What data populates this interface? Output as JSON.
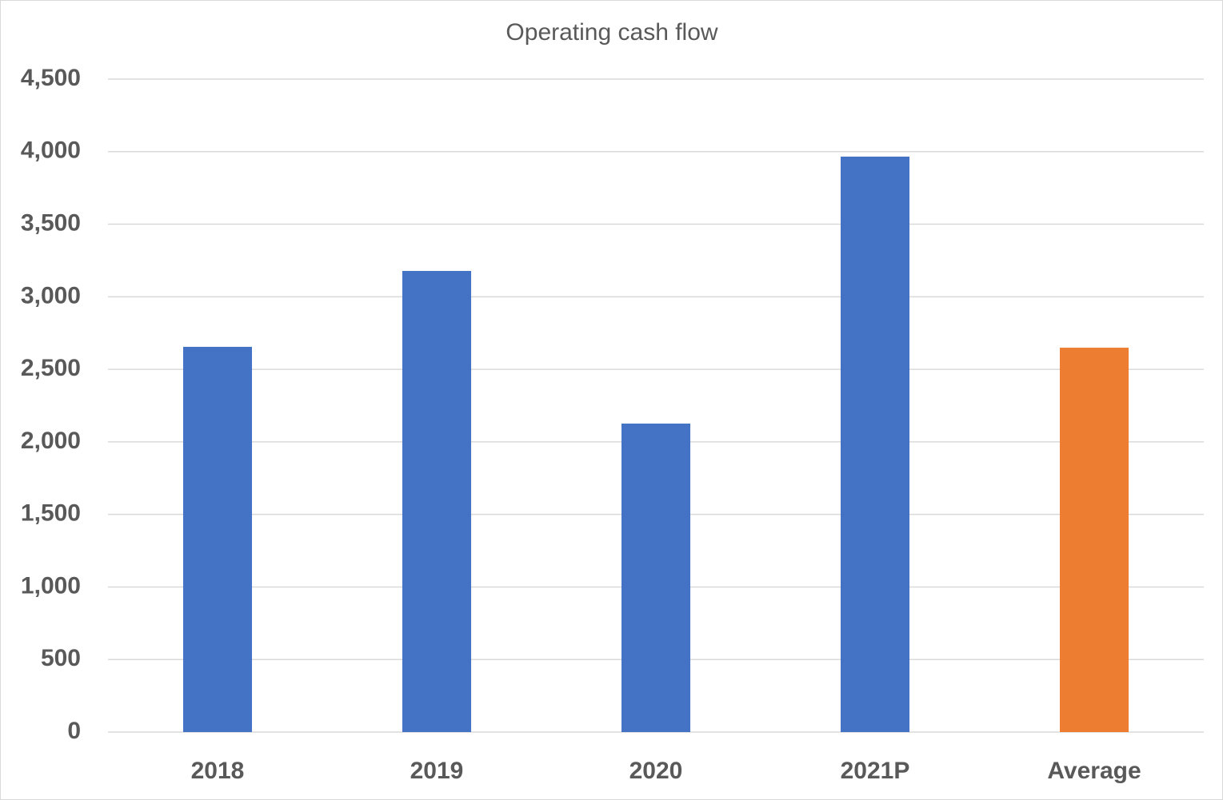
{
  "chart_data": {
    "type": "bar",
    "title": "Operating cash flow",
    "categories": [
      "2018",
      "2019",
      "2020",
      "2021P",
      "Average"
    ],
    "values": [
      2655,
      3178,
      2126,
      3966,
      2649
    ],
    "colors": [
      "#4472c4",
      "#4472c4",
      "#4472c4",
      "#4472c4",
      "#ed7d31"
    ],
    "ylim": [
      0,
      4500
    ],
    "yticks": [
      0,
      500,
      {
        "value": 1000,
        "label": "1,000"
      },
      {
        "value": 1500,
        "label": "1,500"
      },
      {
        "value": 2000,
        "label": "2,000"
      },
      {
        "value": 2500,
        "label": "2,500"
      },
      {
        "value": 3000,
        "label": "3,000"
      },
      {
        "value": 3500,
        "label": "3,500"
      },
      {
        "value": 4000,
        "label": "4,000"
      },
      {
        "value": 4500,
        "label": "4,500"
      }
    ],
    "grid": true
  }
}
